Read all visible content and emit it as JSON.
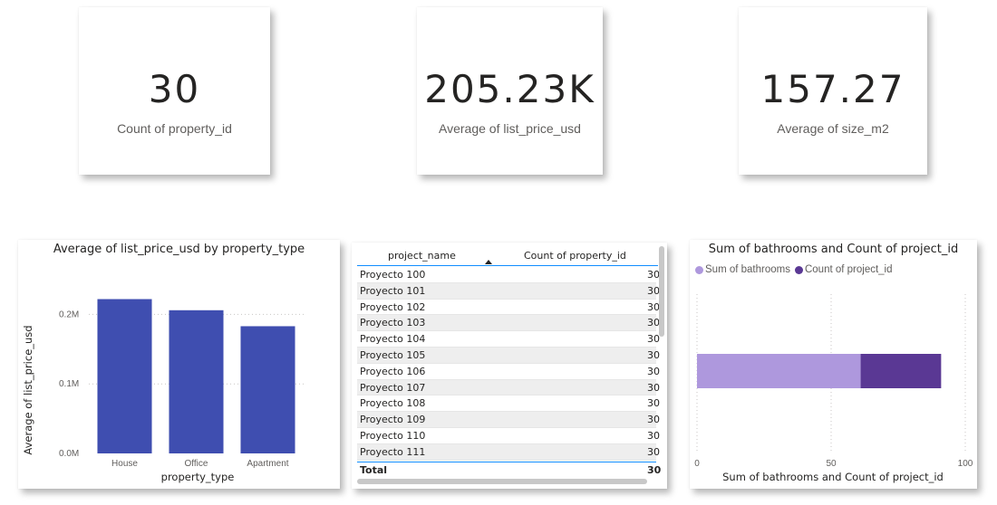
{
  "kpis": [
    {
      "value": "30",
      "label": "Count of property_id"
    },
    {
      "value": "205.23K",
      "label": "Average of list_price_usd"
    },
    {
      "value": "157.27",
      "label": "Average of size_m2"
    }
  ],
  "bar_chart": {
    "title": "Average of list_price_usd by property_type",
    "xlabel": "property_type",
    "ylabel": "Average of list_price_usd",
    "y_ticks": [
      "0.0M",
      "0.1M",
      "0.2M"
    ],
    "color": "#3f4eb0"
  },
  "table": {
    "columns": [
      "project_name",
      "Count of property_id"
    ],
    "rows": [
      {
        "name": "Proyecto 100",
        "count": "30"
      },
      {
        "name": "Proyecto 101",
        "count": "30"
      },
      {
        "name": "Proyecto 102",
        "count": "30"
      },
      {
        "name": "Proyecto 103",
        "count": "30"
      },
      {
        "name": "Proyecto 104",
        "count": "30"
      },
      {
        "name": "Proyecto 105",
        "count": "30"
      },
      {
        "name": "Proyecto 106",
        "count": "30"
      },
      {
        "name": "Proyecto 107",
        "count": "30"
      },
      {
        "name": "Proyecto 108",
        "count": "30"
      },
      {
        "name": "Proyecto 109",
        "count": "30"
      },
      {
        "name": "Proyecto 110",
        "count": "30"
      },
      {
        "name": "Proyecto 111",
        "count": "30"
      }
    ],
    "total_label": "Total",
    "total_value": "30"
  },
  "stacked_chart": {
    "title": "Sum of bathrooms and Count of project_id",
    "xlabel": "Sum of bathrooms and Count of project_id",
    "x_ticks": [
      "0",
      "50",
      "100"
    ],
    "legend": [
      {
        "name": "Sum of bathrooms",
        "color": "#ae98dd"
      },
      {
        "name": "Count of project_id",
        "color": "#5a3894"
      }
    ]
  },
  "chart_data": [
    {
      "type": "bar",
      "title": "Average of list_price_usd by property_type",
      "categories": [
        "House",
        "Office",
        "Apartment"
      ],
      "values": [
        222000,
        206000,
        183000
      ],
      "xlabel": "property_type",
      "ylabel": "Average of list_price_usd",
      "ylim": [
        0,
        250000
      ],
      "grid": true
    },
    {
      "type": "bar",
      "title": "Sum of bathrooms and Count of project_id",
      "orientation": "horizontal-stacked",
      "series": [
        {
          "name": "Sum of bathrooms",
          "values": [
            61
          ]
        },
        {
          "name": "Count of project_id",
          "values": [
            30
          ]
        }
      ],
      "xlabel": "Sum of bathrooms and Count of project_id",
      "xlim": [
        0,
        100
      ],
      "legend_position": "top-left",
      "grid": true
    }
  ]
}
